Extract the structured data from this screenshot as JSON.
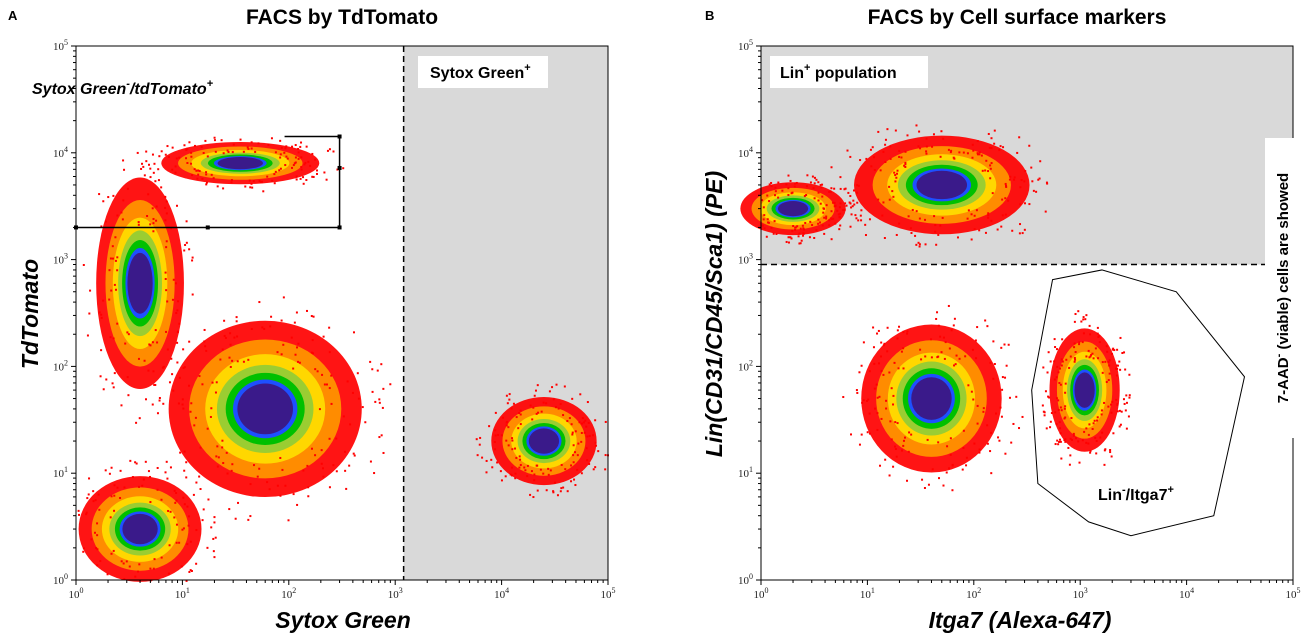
{
  "chart_data": [
    {
      "type": "heatmap",
      "panel_letter": "A",
      "title": "FACS by TdTomato",
      "xlabel": "Sytox Green",
      "ylabel": "TdTomato",
      "xscale": "log",
      "yscale": "log",
      "xlim": [
        1,
        100000
      ],
      "ylim": [
        1,
        100000
      ],
      "x_tick_labels": [
        {
          "base": "10",
          "exp": "0"
        },
        {
          "base": "10",
          "exp": "1"
        },
        {
          "base": "10",
          "exp": "2"
        },
        {
          "base": "10",
          "exp": "3"
        },
        {
          "base": "10",
          "exp": "4"
        },
        {
          "base": "10",
          "exp": "5"
        }
      ],
      "y_tick_labels": [
        {
          "base": "10",
          "exp": "0"
        },
        {
          "base": "10",
          "exp": "1"
        },
        {
          "base": "10",
          "exp": "2"
        },
        {
          "base": "10",
          "exp": "3"
        },
        {
          "base": "10",
          "exp": "4"
        },
        {
          "base": "10",
          "exp": "5"
        }
      ],
      "density_colors": [
        "#ff0000",
        "#ff8c00",
        "#ffd700",
        "#9acd32",
        "#00c000",
        "#1e50ff",
        "#3a1a8a"
      ],
      "populations": [
        {
          "center": [
            60,
            40
          ],
          "spread": [
            0.55,
            0.5
          ]
        },
        {
          "center": [
            4,
            3
          ],
          "spread": [
            0.35,
            0.3
          ]
        },
        {
          "center": [
            35,
            8000
          ],
          "spread": [
            0.45,
            0.12
          ]
        },
        {
          "center": [
            25000,
            20
          ],
          "spread": [
            0.3,
            0.25
          ]
        },
        {
          "center": [
            4,
            600
          ],
          "spread": [
            0.25,
            0.6
          ]
        }
      ],
      "gates": [
        {
          "name": "Sytox Green",
          "name_sup": "-",
          "name2": "/tdTomato",
          "name2_sup": "+",
          "shape": "rectangle",
          "x": [
            1,
            300
          ],
          "y": [
            2000,
            40000
          ],
          "color": "#000000"
        },
        {
          "name": "Sytox Green",
          "name_sup": "+",
          "shape": "threshold-x",
          "x": 1200,
          "fill": "#d9d9d9"
        }
      ]
    },
    {
      "type": "heatmap",
      "panel_letter": "B",
      "title": "FACS by Cell surface markers",
      "xlabel": "Itga7 (Alexa-647)",
      "ylabel": "Lin(CD31/CD45/Sca1) (PE)",
      "xscale": "log",
      "yscale": "log",
      "xlim": [
        1,
        100000
      ],
      "ylim": [
        1,
        100000
      ],
      "x_tick_labels": [
        {
          "base": "10",
          "exp": "0"
        },
        {
          "base": "10",
          "exp": "1"
        },
        {
          "base": "10",
          "exp": "2"
        },
        {
          "base": "10",
          "exp": "3"
        },
        {
          "base": "10",
          "exp": "4"
        },
        {
          "base": "10",
          "exp": "5"
        }
      ],
      "y_tick_labels": [
        {
          "base": "10",
          "exp": "0"
        },
        {
          "base": "10",
          "exp": "1"
        },
        {
          "base": "10",
          "exp": "2"
        },
        {
          "base": "10",
          "exp": "3"
        },
        {
          "base": "10",
          "exp": "4"
        },
        {
          "base": "10",
          "exp": "5"
        }
      ],
      "density_colors": [
        "#ff0000",
        "#ff8c00",
        "#ffd700",
        "#9acd32",
        "#00c000",
        "#1e50ff",
        "#3a1a8a"
      ],
      "populations": [
        {
          "center": [
            50,
            5000
          ],
          "spread": [
            0.5,
            0.28
          ]
        },
        {
          "center": [
            2,
            3000
          ],
          "spread": [
            0.3,
            0.15
          ]
        },
        {
          "center": [
            40,
            50
          ],
          "spread": [
            0.4,
            0.42
          ]
        },
        {
          "center": [
            1100,
            60
          ],
          "spread": [
            0.2,
            0.35
          ]
        }
      ],
      "gates": [
        {
          "name": "Lin",
          "name_sup": "+",
          "name2": " population",
          "shape": "threshold-y",
          "y": 900,
          "fill": "#d9d9d9"
        },
        {
          "name": "Lin",
          "name_sup": "-",
          "name2": "/Itga7",
          "name2_sup": "+",
          "shape": "polygon",
          "color": "#000000",
          "points": [
            [
              550,
              650
            ],
            [
              1600,
              800
            ],
            [
              8000,
              500
            ],
            [
              35000,
              80
            ],
            [
              18000,
              4
            ],
            [
              3000,
              2.6
            ],
            [
              1200,
              3.5
            ],
            [
              400,
              8
            ],
            [
              350,
              60
            ]
          ]
        }
      ],
      "side_note": "7-AAD",
      "side_note_sup": "-",
      "side_note_rest": " (viable) cells are showed"
    }
  ]
}
